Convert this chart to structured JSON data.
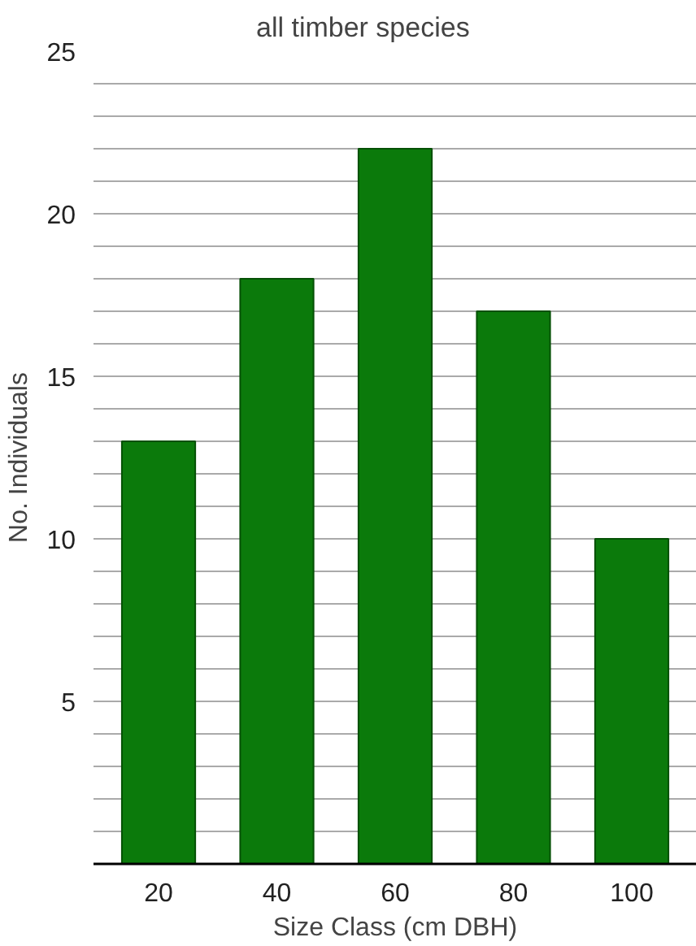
{
  "chart_data": {
    "type": "bar",
    "title": "all timber species",
    "xlabel": "Size Class (cm DBH)",
    "ylabel": "No. Individuals",
    "categories": [
      "20",
      "40",
      "60",
      "80",
      "100"
    ],
    "values": [
      13,
      18,
      22,
      17,
      10
    ],
    "color": "#0b7a0b",
    "ylim": [
      0,
      25
    ],
    "yticks": [
      {
        "value": 0,
        "label": null
      },
      {
        "value": 1,
        "label": null
      },
      {
        "value": 2,
        "label": null
      },
      {
        "value": 3,
        "label": null
      },
      {
        "value": 4,
        "label": null
      },
      5,
      {
        "value": 6,
        "label": null
      },
      {
        "value": 7,
        "label": null
      },
      {
        "value": 8,
        "label": null
      },
      {
        "value": 9,
        "label": null
      },
      10,
      {
        "value": 11,
        "label": null
      },
      {
        "value": 12,
        "label": null
      },
      {
        "value": 13,
        "label": null
      },
      {
        "value": 14,
        "label": null
      },
      15,
      {
        "value": 16,
        "label": null
      },
      {
        "value": 17,
        "label": null
      },
      {
        "value": 18,
        "label": null
      },
      {
        "value": 19,
        "label": null
      },
      20,
      {
        "value": 21,
        "label": null
      },
      {
        "value": 22,
        "label": null
      },
      {
        "value": 23,
        "label": null
      },
      {
        "value": 24,
        "label": null
      },
      25
    ],
    "grid": "y"
  }
}
